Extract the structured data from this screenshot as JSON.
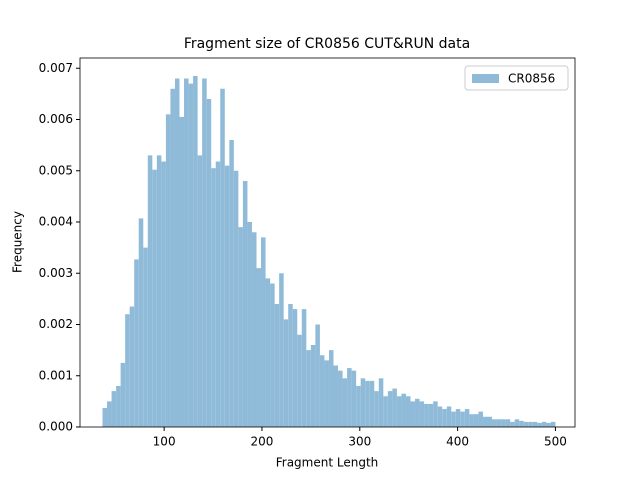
{
  "chart_data": {
    "type": "histogram",
    "title": "Fragment size of CR0856 CUT&RUN data",
    "x_label": "Fragment Length",
    "y_label": "Frequency",
    "legend_position": "upper right",
    "series": [
      {
        "name": "CR0856",
        "color": "#8fbbd9",
        "bins": [
          37,
          41.63,
          46.26,
          50.89,
          55.52,
          60.15,
          64.78,
          69.41,
          74.04,
          78.67,
          83.3,
          87.93,
          92.56,
          97.19,
          101.82,
          106.45,
          111.08,
          115.71,
          120.34,
          124.97,
          129.6,
          134.23,
          138.86,
          143.49,
          148.12,
          152.75,
          157.38,
          162.01,
          166.64,
          171.27,
          175.9,
          180.53,
          185.16,
          189.79,
          194.42,
          199.05,
          203.68,
          208.31,
          212.94,
          217.57,
          222.2,
          226.83,
          231.46,
          236.09,
          240.72,
          245.35,
          249.98,
          254.61,
          259.24,
          263.87,
          268.5,
          273.13,
          277.76,
          282.39,
          287.02,
          291.65,
          296.28,
          300.91,
          305.54,
          310.17,
          314.8,
          319.43,
          324.06,
          328.69,
          333.32,
          337.95,
          342.58,
          347.21,
          351.84,
          356.47,
          361.1,
          365.73,
          370.36,
          374.99,
          379.62,
          384.25,
          388.88,
          393.51,
          398.14,
          402.77,
          407.4,
          412.03,
          416.66,
          421.29,
          425.92,
          430.55,
          435.18,
          439.81,
          444.44,
          449.07,
          453.7,
          458.33,
          462.96,
          467.59,
          472.22,
          476.85,
          481.48,
          486.11,
          490.74,
          495.37,
          500
        ],
        "values": [
          0.00037,
          0.0005,
          0.0007,
          0.0008,
          0.00125,
          0.0022,
          0.00235,
          0.00327,
          0.00407,
          0.0035,
          0.0053,
          0.00502,
          0.0053,
          0.00518,
          0.0061,
          0.0066,
          0.0068,
          0.00605,
          0.0068,
          0.0067,
          0.00685,
          0.0053,
          0.0068,
          0.0064,
          0.00505,
          0.00518,
          0.0066,
          0.0051,
          0.0056,
          0.005,
          0.0039,
          0.0048,
          0.004,
          0.0038,
          0.0031,
          0.0037,
          0.0029,
          0.0028,
          0.0024,
          0.003,
          0.0021,
          0.0024,
          0.0023,
          0.0018,
          0.0023,
          0.0015,
          0.0016,
          0.002,
          0.0014,
          0.0013,
          0.0015,
          0.0012,
          0.0011,
          0.00095,
          0.00115,
          0.0011,
          0.0008,
          0.00095,
          0.0009,
          0.0009,
          0.0007,
          0.00095,
          0.0006,
          0.0007,
          0.00075,
          0.0006,
          0.00065,
          0.0006,
          0.0005,
          0.00055,
          0.0005,
          0.00045,
          0.00045,
          0.0005,
          0.0004,
          0.00035,
          0.0004,
          0.0003,
          0.00035,
          0.0003,
          0.00035,
          0.00025,
          0.00025,
          0.0003,
          0.0002,
          0.0002,
          0.00015,
          0.00015,
          0.00015,
          0.00015,
          0.0001,
          0.00015,
          0.00012,
          0.0001,
          0.0001,
          0.0001,
          8e-05,
          0.0001,
          8e-05,
          0.0001
        ]
      }
    ],
    "xlim": [
      14,
      520
    ],
    "xticks": [
      100,
      200,
      300,
      400,
      500
    ],
    "ylim": [
      0,
      0.0072
    ],
    "yticks": [
      {
        "value": 0,
        "label": "0.000"
      },
      {
        "value": 0.001,
        "label": "0.001"
      },
      {
        "value": 0.002,
        "label": "0.002"
      },
      {
        "value": 0.003,
        "label": "0.003"
      },
      {
        "value": 0.004,
        "label": "0.004"
      },
      {
        "value": 0.005,
        "label": "0.005"
      },
      {
        "value": 0.006,
        "label": "0.006"
      },
      {
        "value": 0.007,
        "label": "0.007"
      }
    ]
  }
}
